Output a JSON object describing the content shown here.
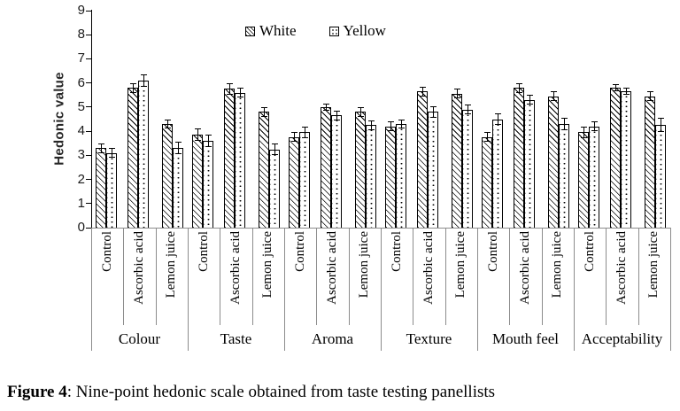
{
  "figure": {
    "caption_prefix": "Figure 4",
    "caption_text": ": Nine-point hedonic scale obtained from taste testing panellists"
  },
  "chart_data": {
    "type": "bar",
    "title": "",
    "xlabel": "",
    "ylabel": "Hedonic value",
    "ylim": [
      0,
      9
    ],
    "ytick_step": 1,
    "yticks": [
      0,
      1,
      2,
      3,
      4,
      5,
      6,
      7,
      8,
      9
    ],
    "grid": false,
    "legend_position": "top-center",
    "groups": [
      "Colour",
      "Taste",
      "Aroma",
      "Texture",
      "Mouth feel",
      "Acceptability"
    ],
    "treatments": [
      "Control",
      "Ascorbic acid",
      "Lemon juice"
    ],
    "series": [
      {
        "name": "White",
        "pattern": "diagonal-hatch",
        "fill": "#ffffff",
        "values": [
          [
            3.3,
            5.8,
            4.3
          ],
          [
            3.85,
            5.75,
            4.8
          ],
          [
            3.75,
            5.0,
            4.8
          ],
          [
            4.2,
            5.65,
            5.55
          ],
          [
            3.75,
            5.8,
            5.45
          ],
          [
            3.95,
            5.8,
            5.45
          ]
        ],
        "errors": [
          [
            0.2,
            0.2,
            0.2
          ],
          [
            0.25,
            0.25,
            0.2
          ],
          [
            0.2,
            0.15,
            0.2
          ],
          [
            0.2,
            0.2,
            0.2
          ],
          [
            0.2,
            0.2,
            0.2
          ],
          [
            0.25,
            0.15,
            0.2
          ]
        ]
      },
      {
        "name": "Yellow",
        "pattern": "dots",
        "fill": "#ffffff",
        "values": [
          [
            3.1,
            6.1,
            3.3
          ],
          [
            3.6,
            5.6,
            3.25
          ],
          [
            3.95,
            4.65,
            4.25
          ],
          [
            4.3,
            4.8,
            4.9
          ],
          [
            4.5,
            5.3,
            4.3
          ],
          [
            4.2,
            5.65,
            4.25
          ]
        ],
        "errors": [
          [
            0.2,
            0.25,
            0.25
          ],
          [
            0.25,
            0.2,
            0.25
          ],
          [
            0.25,
            0.2,
            0.2
          ],
          [
            0.2,
            0.25,
            0.2
          ],
          [
            0.25,
            0.2,
            0.25
          ],
          [
            0.2,
            0.15,
            0.3
          ]
        ]
      }
    ]
  },
  "colors": {
    "ink": "#000000",
    "baseline_gray": "#8c8c8c",
    "background": "#ffffff"
  }
}
